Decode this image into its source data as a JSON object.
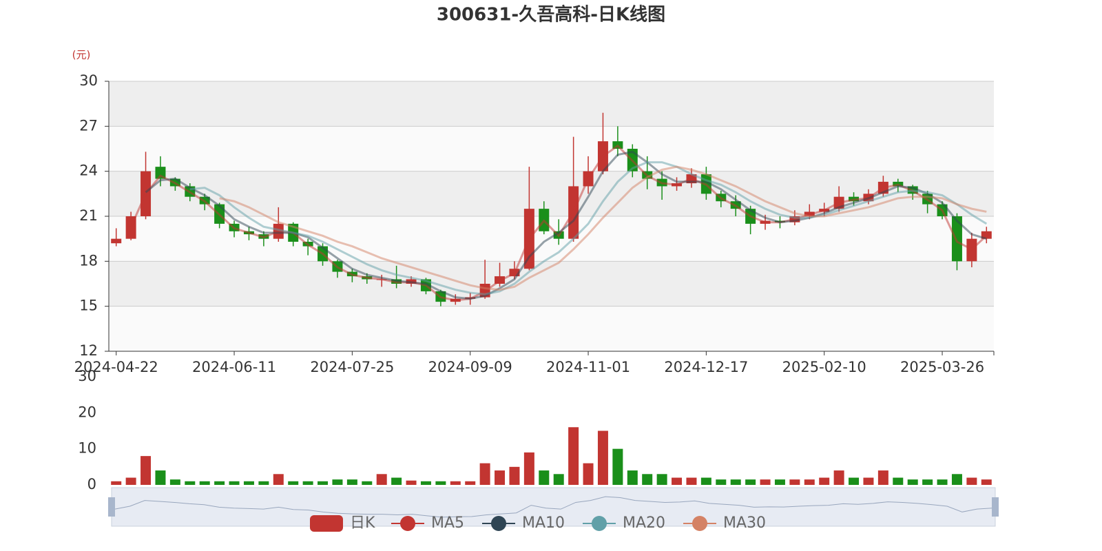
{
  "chart_data": {
    "type": "candlestick",
    "title": "300631-久吾高科-日K线图",
    "y_unit": "(元)",
    "candle_name": "日K",
    "up_color": "#c23531",
    "down_color": "#1a8f1a",
    "split_area": true,
    "grid": true,
    "categories": [
      "2024-04-22",
      null,
      null,
      null,
      null,
      null,
      null,
      null,
      "2024-06-11",
      null,
      null,
      null,
      null,
      null,
      null,
      null,
      "2024-07-25",
      null,
      null,
      null,
      null,
      null,
      null,
      null,
      "2024-09-09",
      null,
      null,
      null,
      null,
      null,
      null,
      null,
      "2024-11-01",
      null,
      null,
      null,
      null,
      null,
      null,
      null,
      "2024-12-17",
      null,
      null,
      null,
      null,
      null,
      null,
      null,
      "2025-02-10",
      null,
      null,
      null,
      null,
      null,
      null,
      null,
      "2025-03-26",
      null,
      null,
      null
    ],
    "candles": [
      [
        19.2,
        19.5,
        19,
        20.2
      ],
      [
        19.5,
        21,
        19.4,
        21.3
      ],
      [
        21,
        24,
        20.8,
        25.3
      ],
      [
        24.3,
        23.5,
        23,
        25
      ],
      [
        23.5,
        23,
        22.7,
        23.6
      ],
      [
        23,
        22.3,
        22,
        23.2
      ],
      [
        22.3,
        21.8,
        21.4,
        22.5
      ],
      [
        21.8,
        20.5,
        20.2,
        21.9
      ],
      [
        20.5,
        20,
        19.6,
        20.7
      ],
      [
        20,
        19.8,
        19.4,
        20.3
      ],
      [
        19.8,
        19.5,
        19,
        20
      ],
      [
        19.5,
        20.5,
        19.3,
        21.6
      ],
      [
        20.5,
        19.3,
        19,
        20.6
      ],
      [
        19.3,
        19,
        18.4,
        19.5
      ],
      [
        19,
        18,
        17.7,
        19.2
      ],
      [
        18,
        17.3,
        16.9,
        18.1
      ],
      [
        17.3,
        17,
        16.6,
        17.5
      ],
      [
        17,
        16.8,
        16.5,
        17.2
      ],
      [
        16.8,
        16.8,
        16.3,
        17.1
      ],
      [
        16.8,
        16.5,
        16.2,
        17.7
      ],
      [
        16.5,
        16.8,
        16.3,
        17
      ],
      [
        16.8,
        16,
        15.8,
        16.9
      ],
      [
        16,
        15.3,
        15,
        16.1
      ],
      [
        15.3,
        15.5,
        15.1,
        15.8
      ],
      [
        15.5,
        15.6,
        15.1,
        15.9
      ],
      [
        15.6,
        16.5,
        15.5,
        18.1
      ],
      [
        16.5,
        17,
        16.3,
        17.9
      ],
      [
        17,
        17.5,
        16.8,
        18
      ],
      [
        17.5,
        21.5,
        17.4,
        24.3
      ],
      [
        21.5,
        20,
        19.8,
        22
      ],
      [
        20,
        19.5,
        19.1,
        20.8
      ],
      [
        19.5,
        23,
        19.3,
        26.3
      ],
      [
        23,
        24,
        22.5,
        25
      ],
      [
        24,
        26,
        23.8,
        27.9
      ],
      [
        26,
        25.5,
        25,
        27
      ],
      [
        25.5,
        24,
        23.6,
        25.8
      ],
      [
        24,
        23.5,
        22.8,
        25
      ],
      [
        23.5,
        23,
        22.1,
        24
      ],
      [
        23,
        23.2,
        22.7,
        23.6
      ],
      [
        23.2,
        23.8,
        22.9,
        24.2
      ],
      [
        23.8,
        22.5,
        22.1,
        24.3
      ],
      [
        22.5,
        22,
        21.6,
        22.7
      ],
      [
        22,
        21.5,
        21,
        22.4
      ],
      [
        21.5,
        20.5,
        19.8,
        21.7
      ],
      [
        20.5,
        20.7,
        20.1,
        21.1
      ],
      [
        20.7,
        20.6,
        20.2,
        21
      ],
      [
        20.6,
        21,
        20.4,
        21.4
      ],
      [
        21,
        21.3,
        20.8,
        21.8
      ],
      [
        21.3,
        21.5,
        21,
        21.9
      ],
      [
        21.5,
        22.3,
        21.3,
        23
      ],
      [
        22.3,
        22,
        21.7,
        22.6
      ],
      [
        22,
        22.5,
        21.8,
        22.8
      ],
      [
        22.5,
        23.3,
        22.3,
        23.7
      ],
      [
        23.3,
        23,
        22.6,
        23.5
      ],
      [
        23,
        22.5,
        22.1,
        23.1
      ],
      [
        22.5,
        21.8,
        21.2,
        22.7
      ],
      [
        21.8,
        21,
        20.8,
        22
      ],
      [
        21,
        18,
        17.4,
        21.2
      ],
      [
        18,
        19.5,
        17.6,
        19.9
      ],
      [
        19.5,
        20,
        19.2,
        20.3
      ]
    ],
    "series": [
      {
        "name": "MA5",
        "color": "#c23531",
        "values": [
          null,
          20.3,
          22.5,
          23.7,
          23.2,
          22.6,
          22,
          21.1,
          20.2,
          19.9,
          19.6,
          20,
          19.9,
          19.1,
          18.5,
          17.6,
          17.1,
          16.9,
          16.8,
          16.6,
          16.6,
          16.4,
          15.6,
          15.4,
          15.5,
          16,
          16.7,
          17.2,
          19.5,
          20.7,
          19.7,
          21.3,
          23.5,
          25,
          25.7,
          24.7,
          23.7,
          23.2,
          23.1,
          23.5,
          23.1,
          22.2,
          21.7,
          21,
          20.6,
          20.6,
          20.8,
          21.1,
          21.4,
          21.9,
          22.1,
          22.2,
          22.9,
          23.1,
          22.7,
          22.1,
          21.4,
          19.3,
          18.8,
          19.7
        ]
      },
      {
        "name": "MA10",
        "color": "#2f4554",
        "values": [
          null,
          null,
          22.6,
          23.4,
          23.5,
          22.9,
          22.4,
          21.7,
          20.8,
          20.3,
          19.9,
          19.9,
          19.9,
          19.6,
          18.9,
          18.2,
          17.5,
          17.1,
          16.9,
          16.7,
          16.6,
          16.5,
          16,
          15.6,
          15.5,
          15.7,
          16.2,
          16.8,
          18.3,
          19.3,
          19.9,
          20.7,
          22.3,
          24,
          25.1,
          25.3,
          24.6,
          23.8,
          23.3,
          23.3,
          23.3,
          22.8,
          22.1,
          21.4,
          20.9,
          20.6,
          20.7,
          20.9,
          21.2,
          21.6,
          21.9,
          22.2,
          22.6,
          23,
          22.9,
          22.5,
          21.9,
          20.7,
          19.8,
          19.5
        ]
      },
      {
        "name": "MA20",
        "color": "#61a0a8",
        "values": [
          null,
          null,
          null,
          null,
          null,
          22.8,
          22.9,
          22.4,
          21.6,
          20.9,
          20.3,
          20.1,
          19.9,
          19.7,
          19.3,
          18.8,
          18.3,
          17.8,
          17.4,
          17.1,
          16.9,
          16.7,
          16.4,
          16.1,
          15.9,
          15.8,
          16,
          16.5,
          17.3,
          18,
          18.6,
          19.5,
          20.5,
          22,
          23.3,
          24.2,
          24.6,
          24.6,
          24.3,
          23.8,
          23.4,
          23.1,
          22.6,
          22,
          21.5,
          21.1,
          20.9,
          20.9,
          21.1,
          21.4,
          21.7,
          22,
          22.3,
          22.6,
          22.7,
          22.6,
          22.4,
          21.8,
          21.1,
          20.5
        ]
      },
      {
        "name": "MA30",
        "color": "#d48265",
        "values": [
          null,
          null,
          null,
          null,
          null,
          null,
          null,
          22.2,
          22,
          21.6,
          21.1,
          20.6,
          20.3,
          20,
          19.7,
          19.3,
          19,
          18.6,
          18.2,
          17.9,
          17.6,
          17.3,
          17,
          16.7,
          16.4,
          16.2,
          16.1,
          16.3,
          16.9,
          17.4,
          17.9,
          18.8,
          19.8,
          20.9,
          21.9,
          22.9,
          23.6,
          24.1,
          24.3,
          24.1,
          23.8,
          23.4,
          23,
          22.5,
          22,
          21.6,
          21.2,
          21,
          21,
          21.2,
          21.4,
          21.6,
          21.9,
          22.2,
          22.3,
          22.3,
          22.2,
          21.8,
          21.5,
          21.3
        ]
      }
    ],
    "ylim": [
      12,
      30
    ],
    "yticks": [
      12,
      15,
      18,
      21,
      24,
      27,
      30
    ],
    "volume": {
      "values": [
        1,
        2,
        8,
        4,
        1.5,
        1,
        1,
        1,
        1,
        1,
        1,
        3,
        1,
        1,
        1,
        1.5,
        1.5,
        1,
        3,
        2,
        1.2,
        1,
        1,
        1,
        1,
        6,
        4,
        5,
        9,
        4,
        3,
        16,
        6,
        15,
        10,
        4,
        3,
        3,
        2,
        2,
        2,
        1.5,
        1.5,
        1.5,
        1.5,
        1.5,
        1.5,
        1.5,
        2,
        4,
        2,
        2,
        4,
        2,
        1.5,
        1.5,
        1.5,
        3,
        2,
        1.5
      ],
      "ylim": [
        0,
        30
      ],
      "yticks": [
        0,
        10,
        20,
        30
      ]
    }
  }
}
